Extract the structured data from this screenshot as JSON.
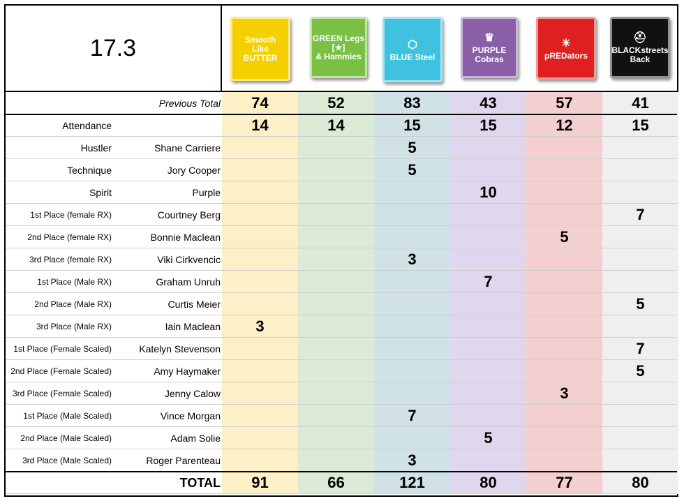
{
  "title": "17.3",
  "teams": [
    {
      "name_lines": [
        "Smooth",
        "Like",
        "BUTTER"
      ],
      "bg": "#f5d000",
      "fg": "#ffffff",
      "icon": "",
      "col_color": "#fdefc6",
      "previous_total": "74",
      "attendance": "14",
      "total": "91"
    },
    {
      "name_lines": [
        "GREEN Legs",
        "[★]",
        "& Hammies"
      ],
      "bg": "#7ac143",
      "fg": "#ffffff",
      "icon": "star-icon",
      "col_color": "#dbebd5",
      "previous_total": "52",
      "attendance": "14",
      "total": "66"
    },
    {
      "name_lines": [
        "BLUE Steel"
      ],
      "bg": "#3fc2e0",
      "fg": "#ffffff",
      "icon": "hexagon-icon",
      "col_color": "#d1e2e6",
      "previous_total": "83",
      "attendance": "15",
      "total": "121"
    },
    {
      "name_lines": [
        "PURPLE",
        "Cobras"
      ],
      "bg": "#8a5fa8",
      "fg": "#ffffff",
      "icon": "crown-icon",
      "col_color": "#e0d7ee",
      "previous_total": "43",
      "attendance": "15",
      "total": "80"
    },
    {
      "name_lines": [
        "pREDators"
      ],
      "bg": "#e02020",
      "fg": "#ffffff",
      "icon": "lion-icon",
      "col_color": "#f4cfd0",
      "previous_total": "57",
      "attendance": "12",
      "total": "77"
    },
    {
      "name_lines": [
        "BLACKstreets",
        "Back"
      ],
      "bg": "#111111",
      "fg": "#ffffff",
      "icon": "helmet-icon",
      "col_color": "#efefef",
      "previous_total": "41",
      "attendance": "15",
      "total": "80"
    }
  ],
  "labels": {
    "previous_total": "Previous Total",
    "attendance": "Attendance",
    "total": "TOTAL"
  },
  "awards": [
    {
      "category": "Hustler",
      "athlete": "Shane Carriere",
      "points": [
        "",
        "",
        "5",
        "",
        "",
        ""
      ]
    },
    {
      "category": "Technique",
      "athlete": "Jory Cooper",
      "points": [
        "",
        "",
        "5",
        "",
        "",
        ""
      ]
    },
    {
      "category": "Spirit",
      "athlete": "Purple",
      "points": [
        "",
        "",
        "",
        "10",
        "",
        ""
      ]
    },
    {
      "category": "1st Place (female RX)",
      "athlete": "Courtney Berg",
      "points": [
        "",
        "",
        "",
        "",
        "",
        "7"
      ]
    },
    {
      "category": "2nd Place (female RX)",
      "athlete": "Bonnie Maclean",
      "points": [
        "",
        "",
        "",
        "",
        "5",
        ""
      ]
    },
    {
      "category": "3rd Place (female RX)",
      "athlete": "Viki Cirkvencic",
      "points": [
        "",
        "",
        "3",
        "",
        "",
        ""
      ]
    },
    {
      "category": "1st Place (Male RX)",
      "athlete": "Graham Unruh",
      "points": [
        "",
        "",
        "",
        "7",
        "",
        ""
      ]
    },
    {
      "category": "2nd Place (Male RX)",
      "athlete": "Curtis Meier",
      "points": [
        "",
        "",
        "",
        "",
        "",
        "5"
      ]
    },
    {
      "category": "3rd Place (Male RX)",
      "athlete": "Iain Maclean",
      "points": [
        "3",
        "",
        "",
        "",
        "",
        ""
      ]
    },
    {
      "category": "1st Place (Female Scaled)",
      "athlete": "Katelyn Stevenson",
      "points": [
        "",
        "",
        "",
        "",
        "",
        "7"
      ]
    },
    {
      "category": "2nd Place (Female Scaled)",
      "athlete": "Amy Haymaker",
      "points": [
        "",
        "",
        "",
        "",
        "",
        "5"
      ]
    },
    {
      "category": "3rd Place (Female Scaled)",
      "athlete": "Jenny Calow",
      "points": [
        "",
        "",
        "",
        "",
        "3",
        ""
      ]
    },
    {
      "category": "1st Place (Male Scaled)",
      "athlete": "Vince Morgan",
      "points": [
        "",
        "",
        "7",
        "",
        "",
        ""
      ]
    },
    {
      "category": "2nd Place (Male Scaled)",
      "athlete": "Adam Solie",
      "points": [
        "",
        "",
        "",
        "5",
        "",
        ""
      ]
    },
    {
      "category": "3rd Place (Male Scaled)",
      "athlete": "Roger Parenteau",
      "points": [
        "",
        "",
        "3",
        "",
        "",
        ""
      ]
    }
  ]
}
